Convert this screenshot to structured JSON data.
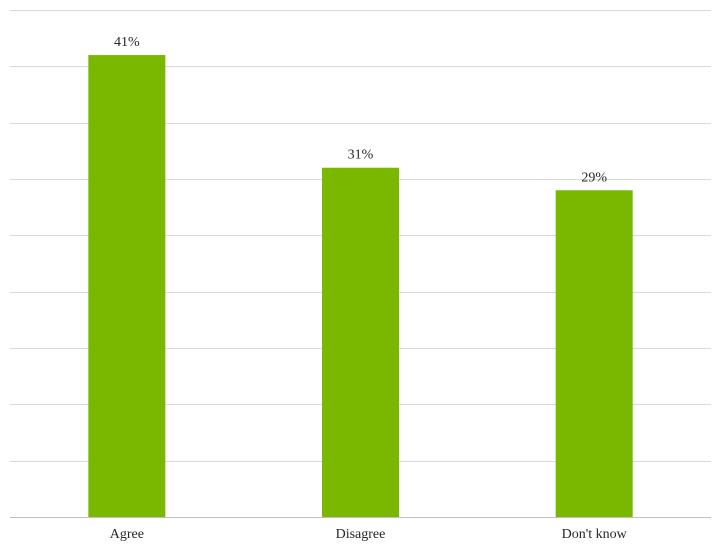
{
  "chart_data": {
    "type": "bar",
    "title": "",
    "xlabel": "",
    "ylabel": "",
    "categories": [
      "Agree",
      "Disagree",
      "Don't know"
    ],
    "values": [
      41,
      31,
      29
    ],
    "data_labels": [
      "41%",
      "31%",
      "29%"
    ],
    "value_unit": "%",
    "ylim": [
      0,
      45
    ],
    "y_gridline_step": 5,
    "grid": true,
    "legend": "none",
    "bar_color": "#7ab800"
  }
}
